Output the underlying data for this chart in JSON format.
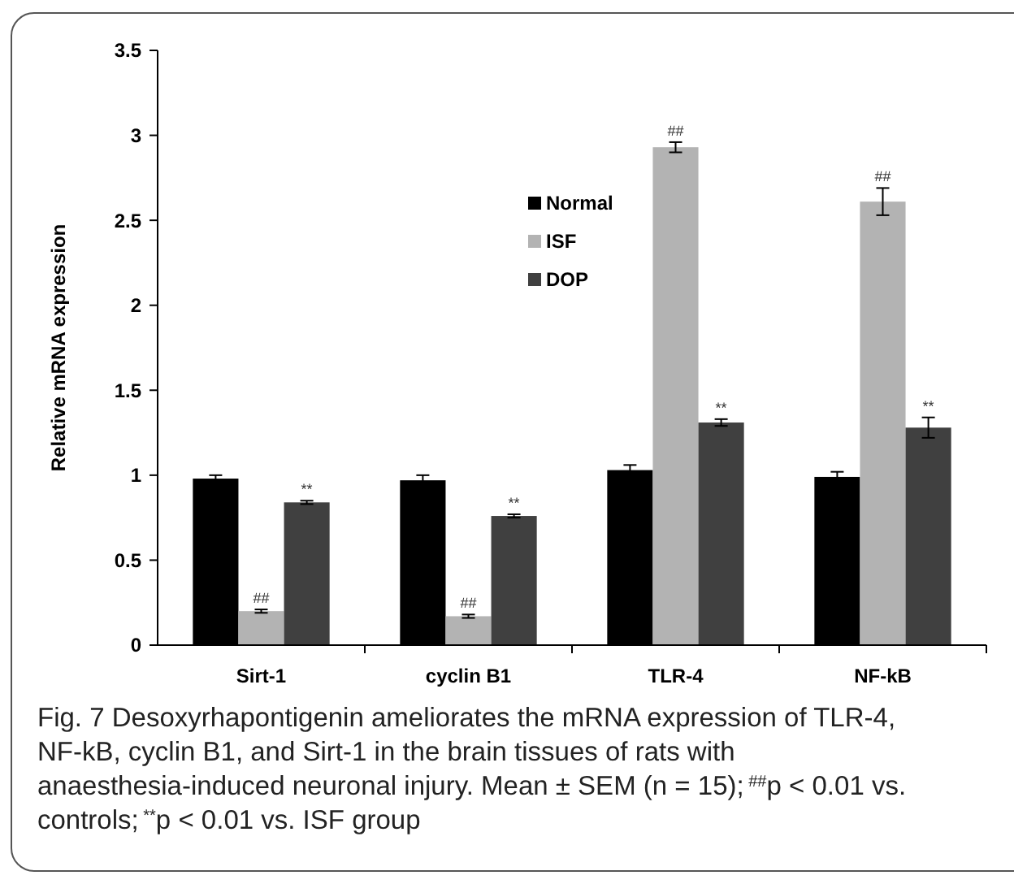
{
  "chart_data": {
    "type": "bar",
    "ylabel": "Relative mRNA expression",
    "categories": [
      "Sirt-1",
      "cyclin B1",
      "TLR-4",
      "NF-kB"
    ],
    "series": [
      {
        "name": "Normal",
        "color": "#000000",
        "values": [
          0.98,
          0.97,
          1.03,
          0.99
        ],
        "errors": [
          0.02,
          0.03,
          0.03,
          0.03
        ]
      },
      {
        "name": "ISF",
        "color": "#b3b3b3",
        "values": [
          0.2,
          0.17,
          2.93,
          2.61
        ],
        "errors": [
          0.01,
          0.01,
          0.03,
          0.08
        ]
      },
      {
        "name": "DOP",
        "color": "#404040",
        "values": [
          0.84,
          0.76,
          1.31,
          1.28
        ],
        "errors": [
          0.01,
          0.01,
          0.02,
          0.06
        ]
      }
    ],
    "ylim": [
      0,
      3.5
    ],
    "yticks": [
      0,
      0.5,
      1,
      1.5,
      2,
      2.5,
      3,
      3.5
    ],
    "legend": "top",
    "grid": false,
    "annotations": [
      {
        "text": "##",
        "x": "Sirt-1",
        "y": 0.2
      },
      {
        "text": "##",
        "x": "cyclin B1",
        "y": 0.17
      },
      {
        "text": "##",
        "x": "TLR-4",
        "y": 2.93
      },
      {
        "text": "##",
        "x": "NF-kB",
        "y": 2.61
      },
      "**",
      "**",
      "**",
      "**",
      "Fig. 7 Desoxyrhapontigenin ameliorates the mRNA expression of TLR-4, NF-kB, cyclin B1, and Sirt-1 in the brain tissues of rats with anaesthesia-induced neuronal injury. Mean ± SEM (n = 15); $^{##}$p < 0.01 vs. controls; $^{**}$p < 0.01 vs. ISF group"
    ]
  }
}
